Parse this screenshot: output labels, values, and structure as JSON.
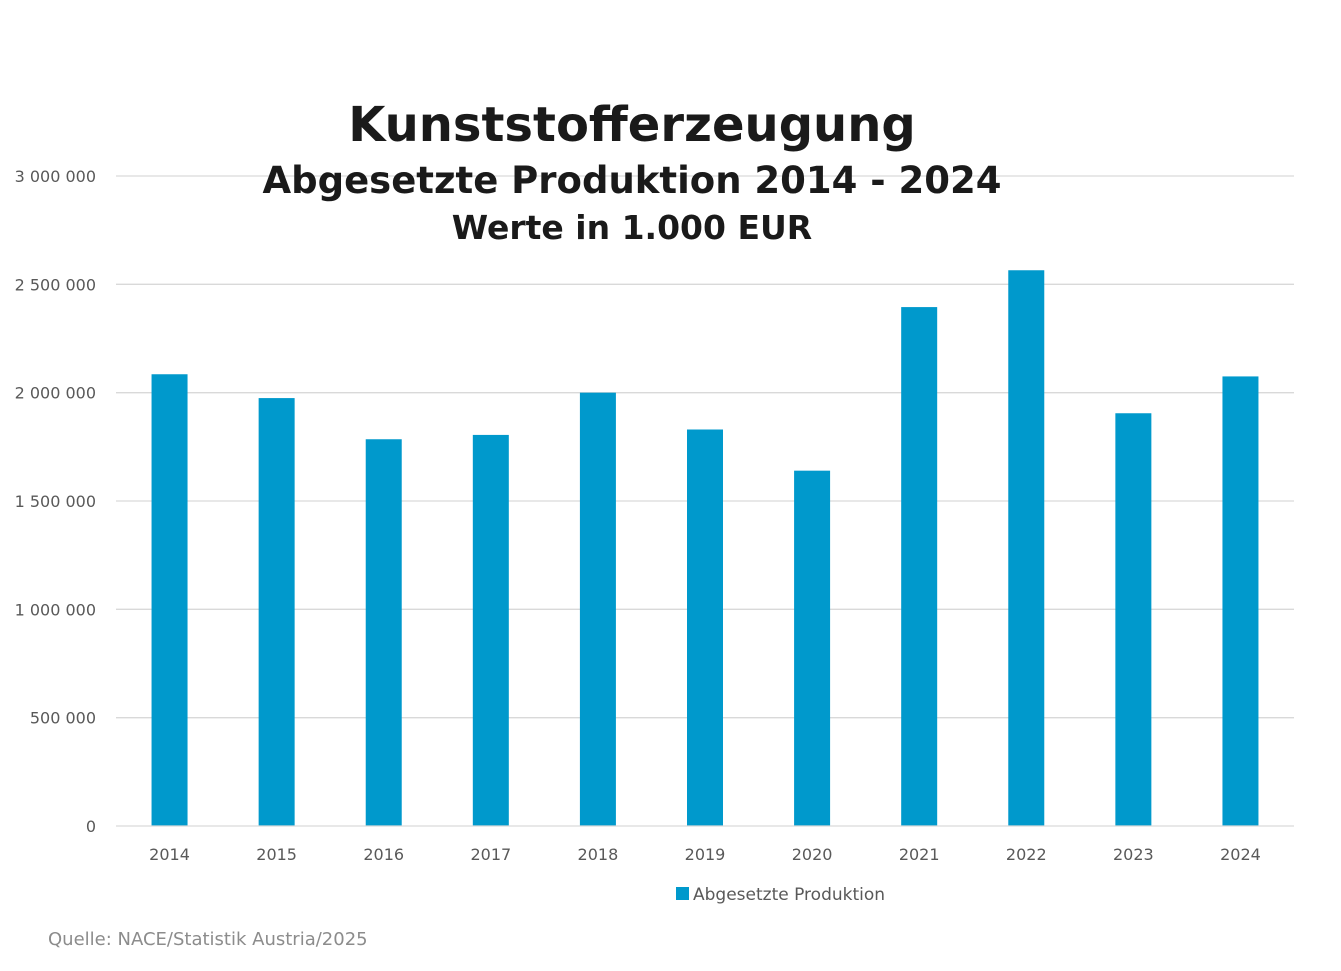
{
  "chart_data": {
    "type": "bar",
    "title": "Kunststofferzeugung",
    "subtitle": "Abgesetzte Produktion 2014 - 2024",
    "subtitle2": "Werte in 1.000 EUR",
    "categories": [
      "2014",
      "2015",
      "2016",
      "2017",
      "2018",
      "2019",
      "2020",
      "2021",
      "2022",
      "2023",
      "2024"
    ],
    "series": [
      {
        "name": "Abgesetzte Produktion",
        "color": "#0099cc",
        "values": [
          2085000,
          1975000,
          1785000,
          1805000,
          2000000,
          1830000,
          1640000,
          2395000,
          2565000,
          1905000,
          2075000
        ]
      }
    ],
    "ylim": [
      0,
      3000000
    ],
    "yticks": [
      0,
      500000,
      1000000,
      1500000,
      2000000,
      2500000,
      3000000
    ],
    "ytick_labels": [
      "0",
      "500 000",
      "1 000 000",
      "1 500 000",
      "2 000 000",
      "2 500 000",
      "3 000 000"
    ],
    "grid": true,
    "legend_position": "bottom-center",
    "xlabel": "",
    "ylabel": ""
  },
  "source": "Quelle: NACE/Statistik Austria/2025"
}
